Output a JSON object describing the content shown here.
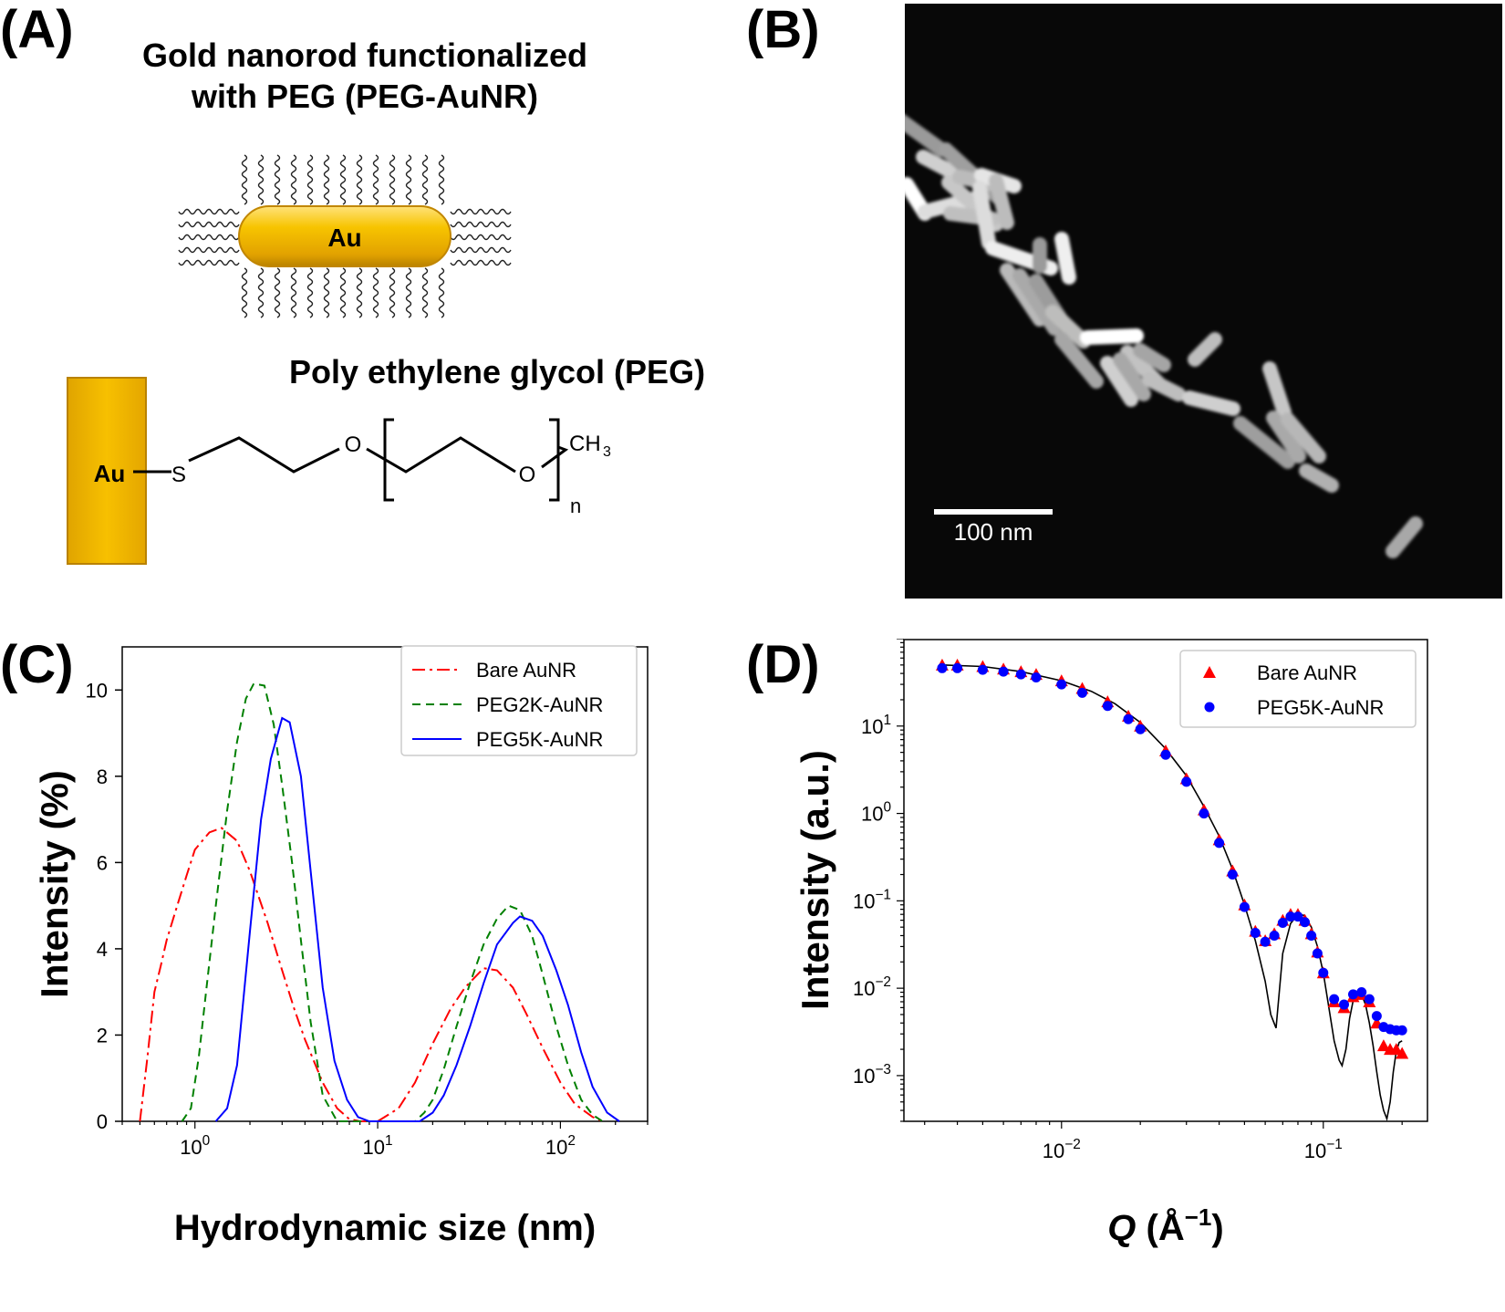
{
  "panels": {
    "a": {
      "label": "(A)",
      "title_line1": "Gold nanorod functionalized",
      "title_line2": "with PEG (PEG-AuNR)",
      "rod_label": "Au",
      "peg_title": "Poly ethylene glycol (PEG)",
      "block_label": "Au",
      "atom_s": "S",
      "atom_o1": "O",
      "atom_o2": "O",
      "ch3": "CH",
      "ch3_sub": "3",
      "n_sub": "n"
    },
    "b": {
      "label": "(B)",
      "scale_bar_text": "100 nm"
    },
    "c": {
      "label": "(C)"
    },
    "d": {
      "label": "(D)"
    }
  },
  "colors": {
    "gold": "#f5b800",
    "gold_dark": "#c68a00",
    "red": "#ff0000",
    "green": "#008000",
    "blue": "#0000ff",
    "black": "#000000"
  },
  "chart_data": [
    {
      "type": "line",
      "id": "C",
      "xlabel": "Hydrodynamic size (nm)",
      "ylabel": "Intensity (%)",
      "xscale": "log",
      "xlim": [
        0.4,
        300
      ],
      "ylim": [
        0,
        11
      ],
      "xticks": [
        {
          "v": 1,
          "base": "10",
          "exp": "0"
        },
        {
          "v": 10,
          "base": "10",
          "exp": "1"
        },
        {
          "v": 100,
          "base": "10",
          "exp": "2"
        }
      ],
      "yticks": [
        0,
        2,
        4,
        6,
        8,
        10
      ],
      "legend_position": "top-right",
      "series": [
        {
          "name": "Bare AuNR",
          "color": "#ff0000",
          "dash": "14,5,3,5",
          "x": [
            0.5,
            0.55,
            0.6,
            0.65,
            0.7,
            0.8,
            0.9,
            1.0,
            1.2,
            1.4,
            1.7,
            2.0,
            2.5,
            3.0,
            3.5,
            4.0,
            5.0,
            6.0,
            7.0,
            8.0,
            10,
            13,
            16,
            20,
            25,
            30,
            38,
            45,
            55,
            65,
            80,
            100,
            120,
            150,
            170
          ],
          "y": [
            0,
            1.5,
            3.0,
            3.6,
            4.2,
            5.0,
            5.7,
            6.3,
            6.7,
            6.8,
            6.5,
            5.8,
            4.6,
            3.5,
            2.6,
            1.9,
            0.9,
            0.3,
            0.05,
            0,
            0,
            0.3,
            0.9,
            1.8,
            2.6,
            3.1,
            3.55,
            3.5,
            3.1,
            2.5,
            1.7,
            0.9,
            0.4,
            0.1,
            0
          ]
        },
        {
          "name": "PEG2K-AuNR",
          "color": "#008000",
          "dash": "9,6",
          "x": [
            0.85,
            0.95,
            1.05,
            1.15,
            1.3,
            1.5,
            1.7,
            1.9,
            2.1,
            2.4,
            2.7,
            3.0,
            3.4,
            3.8,
            4.3,
            5.0,
            6.0,
            16,
            18,
            20,
            23,
            27,
            32,
            38,
            45,
            52,
            60,
            70,
            80,
            95,
            110,
            130,
            150,
            170
          ],
          "y": [
            0,
            0.3,
            1.5,
            3.0,
            5.0,
            7.2,
            8.8,
            9.8,
            10.15,
            10.1,
            9.2,
            7.8,
            6.0,
            4.2,
            2.3,
            0.6,
            0,
            0,
            0.2,
            0.5,
            1.2,
            2.2,
            3.2,
            4.1,
            4.7,
            5.0,
            4.9,
            4.3,
            3.4,
            2.2,
            1.3,
            0.5,
            0.15,
            0
          ]
        },
        {
          "name": "PEG5K-AuNR",
          "color": "#0000ff",
          "dash": "",
          "x": [
            1.3,
            1.5,
            1.7,
            2.0,
            2.3,
            2.6,
            3.0,
            3.3,
            3.8,
            4.3,
            5.0,
            5.8,
            6.8,
            7.8,
            9.0,
            17,
            20,
            23,
            27,
            32,
            38,
            45,
            55,
            60,
            70,
            80,
            95,
            110,
            130,
            150,
            180,
            210
          ],
          "y": [
            0,
            0.3,
            1.3,
            4.4,
            7.0,
            8.4,
            9.35,
            9.25,
            8.0,
            5.8,
            3.1,
            1.4,
            0.5,
            0.1,
            0,
            0,
            0.2,
            0.6,
            1.3,
            2.2,
            3.2,
            4.1,
            4.6,
            4.75,
            4.65,
            4.3,
            3.5,
            2.7,
            1.6,
            0.8,
            0.2,
            0
          ]
        }
      ]
    },
    {
      "type": "scatter",
      "id": "D",
      "xlabel_italic": "Q",
      "xlabel_rest": " (Å",
      "xlabel_exp": "−1",
      "xlabel_close": ")",
      "ylabel": "Intensity (a.u.)",
      "xscale": "log",
      "yscale": "log",
      "xlim": [
        0.0025,
        0.25
      ],
      "ylim": [
        0.0003,
        100
      ],
      "xticks": [
        {
          "v": 0.01,
          "base": "10",
          "exp": "−2"
        },
        {
          "v": 0.1,
          "base": "10",
          "exp": "−1"
        }
      ],
      "yticks": [
        {
          "v": 0.001,
          "base": "10",
          "exp": "−3"
        },
        {
          "v": 0.01,
          "base": "10",
          "exp": "−2"
        },
        {
          "v": 0.1,
          "base": "10",
          "exp": "−1"
        },
        {
          "v": 1,
          "base": "10",
          "exp": "0"
        },
        {
          "v": 10,
          "base": "10",
          "exp": "1"
        }
      ],
      "legend_position": "top-right",
      "series": [
        {
          "name": "Bare AuNR",
          "color": "#ff0000",
          "marker": "triangle",
          "x": [
            0.0035,
            0.004,
            0.005,
            0.006,
            0.007,
            0.008,
            0.01,
            0.012,
            0.015,
            0.018,
            0.02,
            0.025,
            0.03,
            0.035,
            0.04,
            0.045,
            0.05,
            0.055,
            0.06,
            0.065,
            0.07,
            0.075,
            0.08,
            0.085,
            0.09,
            0.095,
            0.1,
            0.11,
            0.12,
            0.13,
            0.14,
            0.15,
            0.16,
            0.17,
            0.18,
            0.19,
            0.2
          ],
          "y": [
            50,
            50,
            48,
            45,
            42,
            39,
            33,
            27,
            19,
            13,
            10,
            5.2,
            2.5,
            1.1,
            0.5,
            0.22,
            0.09,
            0.045,
            0.035,
            0.042,
            0.06,
            0.07,
            0.07,
            0.06,
            0.042,
            0.026,
            0.015,
            0.007,
            0.006,
            0.008,
            0.0085,
            0.007,
            0.004,
            0.0022,
            0.002,
            0.002,
            0.0018
          ]
        },
        {
          "name": "PEG5K-AuNR",
          "color": "#0000ff",
          "marker": "circle",
          "x": [
            0.0035,
            0.004,
            0.005,
            0.006,
            0.007,
            0.008,
            0.01,
            0.012,
            0.015,
            0.018,
            0.02,
            0.025,
            0.03,
            0.035,
            0.04,
            0.045,
            0.05,
            0.055,
            0.06,
            0.065,
            0.07,
            0.075,
            0.08,
            0.085,
            0.09,
            0.095,
            0.1,
            0.11,
            0.12,
            0.13,
            0.14,
            0.15,
            0.16,
            0.17,
            0.18,
            0.19,
            0.2
          ],
          "y": [
            46,
            46,
            44,
            42,
            39,
            36,
            30,
            24,
            17,
            12,
            9.2,
            4.7,
            2.3,
            1.0,
            0.46,
            0.2,
            0.085,
            0.043,
            0.034,
            0.04,
            0.056,
            0.066,
            0.066,
            0.057,
            0.04,
            0.025,
            0.015,
            0.0075,
            0.0065,
            0.0085,
            0.009,
            0.0075,
            0.0048,
            0.0036,
            0.0034,
            0.0033,
            0.0033
          ]
        },
        {
          "name": "",
          "color": "#000000",
          "marker": "line",
          "x": [
            0.0035,
            0.005,
            0.007,
            0.01,
            0.013,
            0.016,
            0.02,
            0.025,
            0.03,
            0.035,
            0.04,
            0.045,
            0.05,
            0.055,
            0.06,
            0.063,
            0.066,
            0.07,
            0.075,
            0.08,
            0.085,
            0.09,
            0.095,
            0.1,
            0.105,
            0.11,
            0.115,
            0.118,
            0.122,
            0.126,
            0.13,
            0.135,
            0.14,
            0.145,
            0.15,
            0.155,
            0.16,
            0.165,
            0.17,
            0.175,
            0.18,
            0.185,
            0.19,
            0.195,
            0.2
          ],
          "y": [
            50,
            48,
            42,
            33,
            25,
            18,
            11,
            5.5,
            2.7,
            1.2,
            0.55,
            0.23,
            0.09,
            0.035,
            0.012,
            0.005,
            0.0035,
            0.025,
            0.055,
            0.07,
            0.068,
            0.05,
            0.03,
            0.015,
            0.006,
            0.0025,
            0.0015,
            0.0013,
            0.002,
            0.0045,
            0.0072,
            0.0088,
            0.0085,
            0.0065,
            0.004,
            0.0022,
            0.0011,
            0.0006,
            0.0004,
            0.00032,
            0.0005,
            0.0011,
            0.0019,
            0.0024,
            0.0025
          ]
        }
      ]
    }
  ]
}
